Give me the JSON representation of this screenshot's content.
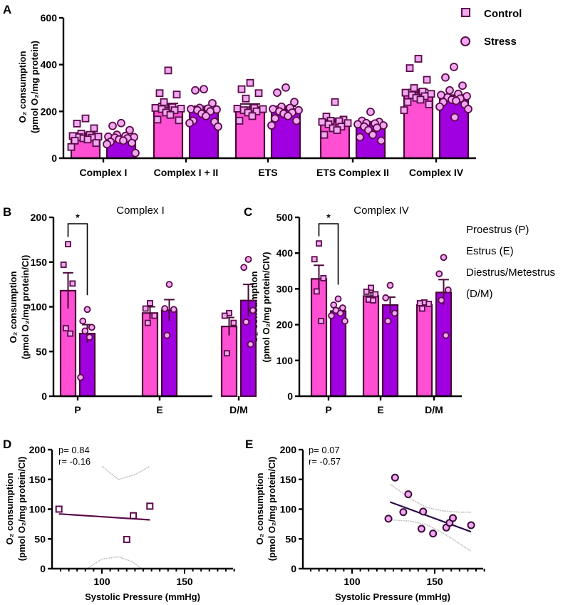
{
  "colors": {
    "control_fill": "#ff4fd2",
    "stress_fill": "#a000e0",
    "bar_stroke": "#4a0a3a",
    "point_fill": "#f2a8f0",
    "point_stroke": "#5a0a4a",
    "fit_line_D": "#5a0a4a",
    "fit_line_E": "#2a0a4a",
    "ci_line": "#b8b8b8"
  },
  "legend": {
    "items": [
      {
        "label": "Control",
        "marker": "square"
      },
      {
        "label": "Stress",
        "marker": "circle"
      }
    ]
  },
  "phase_legend": {
    "lines": [
      "Proestrus (P)",
      "Estrus (E)",
      "Diestrus/Metestrus",
      "(D/M)"
    ]
  },
  "chart_data": [
    {
      "id": "A",
      "panel_letter": "A",
      "type": "bar",
      "title": "",
      "ylabel_line1": "O₂ consumption",
      "ylabel_line2": "(pmol O₂/mg protein)",
      "xlabel": "",
      "ylim": [
        0,
        600
      ],
      "yticks": [
        0,
        200,
        400,
        600
      ],
      "categories": [
        "Complex I",
        "Complex I + II",
        "ETS",
        "ETS Complex II",
        "Complex IV"
      ],
      "series": [
        {
          "name": "Control",
          "values": [
            100,
            218,
            218,
            160,
            280
          ],
          "sem": [
            8,
            16,
            14,
            10,
            14
          ],
          "points": [
            [
              170,
              148,
              128,
              105,
              100,
              95,
              92,
              90,
              88,
              85,
              80,
              75,
              65,
              48
            ],
            [
              375,
              278,
              272,
              240,
              218,
              215,
              212,
              210,
              205,
              195,
              185,
              165,
              162
            ],
            [
              322,
              295,
              278,
              255,
              215,
              212,
              210,
              205,
              200,
              195,
              180,
              160
            ],
            [
              240,
              178,
              165,
              160,
              158,
              155,
              150,
              145,
              135,
              128,
              120,
              100
            ],
            [
              425,
              385,
              335,
              300,
              285,
              280,
              275,
              270,
              265,
              258,
              250,
              240,
              230,
              205
            ]
          ]
        },
        {
          "name": "Stress",
          "values": [
            88,
            210,
            210,
            148,
            258
          ],
          "sem": [
            7,
            12,
            12,
            7,
            12
          ],
          "points": [
            [
              150,
              138,
              120,
              100,
              95,
              92,
              90,
              88,
              85,
              80,
              75,
              70,
              65,
              60,
              22
            ],
            [
              295,
              290,
              235,
              215,
              212,
              210,
              208,
              205,
              200,
              190,
              180,
              160,
              155,
              150,
              135
            ],
            [
              302,
              280,
              240,
              220,
              215,
              210,
              205,
              200,
              195,
              190,
              180,
              170,
              160,
              140
            ],
            [
              198,
              160,
              155,
              150,
              148,
              145,
              140,
              135,
              130,
              120,
              100,
              90,
              75
            ],
            [
              390,
              345,
              310,
              290,
              275,
              270,
              265,
              260,
              255,
              250,
              245,
              240,
              230,
              220,
              210,
              175
            ]
          ]
        }
      ]
    },
    {
      "id": "B",
      "panel_letter": "B",
      "type": "bar",
      "title": "Complex I",
      "ylabel_line1": "O₂ consumption",
      "ylabel_line2": "(pmol O₂/mg protein/CI)",
      "xlabel": "",
      "ylim": [
        0,
        200
      ],
      "yticks": [
        0,
        50,
        100,
        150,
        200
      ],
      "categories": [
        "P",
        "E",
        "D/M"
      ],
      "significance": {
        "group": "P",
        "label": "*"
      },
      "series": [
        {
          "name": "Control",
          "values": [
            118,
            93,
            78
          ],
          "sem": [
            20,
            7,
            10
          ],
          "points": [
            [
              170,
              147,
              126,
              76,
              70
            ],
            [
              104,
              98,
              90,
              82
            ],
            [
              93,
              90,
              82,
              48
            ]
          ]
        },
        {
          "name": "Stress",
          "values": [
            70,
            96,
            107
          ],
          "sem": [
            10,
            12,
            18
          ],
          "points": [
            [
              97,
              84,
              77,
              73,
              66,
              21
            ],
            [
              125,
              98,
              97,
              68
            ],
            [
              153,
              144,
              96,
              83,
              58
            ]
          ]
        }
      ]
    },
    {
      "id": "C",
      "panel_letter": "C",
      "type": "bar",
      "title": "Complex IV",
      "ylabel_line1": "O₂ consumption",
      "ylabel_line2": "(pmol O₂/mg protein/CIV)",
      "xlabel": "",
      "ylim": [
        0,
        500
      ],
      "yticks": [
        0,
        100,
        200,
        300,
        400,
        500
      ],
      "categories": [
        "P",
        "E",
        "D/M"
      ],
      "significance": {
        "group": "P",
        "label": "*"
      },
      "series": [
        {
          "name": "Control",
          "values": [
            328,
            280,
            255
          ],
          "sem": [
            38,
            10,
            5
          ],
          "points": [
            [
              427,
              383,
              330,
              293,
              210
            ],
            [
              303,
              292,
              285,
              270,
              268
            ],
            [
              262,
              260,
              258,
              245
            ]
          ]
        },
        {
          "name": "Stress",
          "values": [
            238,
            255,
            290
          ],
          "sem": [
            8,
            22,
            36
          ],
          "points": [
            [
              272,
              255,
              247,
              240,
              232,
              225,
              210
            ],
            [
              310,
              275,
              232,
              210
            ],
            [
              388,
              342,
              297,
              268,
              170
            ]
          ]
        }
      ]
    },
    {
      "id": "D",
      "panel_letter": "D",
      "type": "scatter",
      "title": "",
      "ylabel_line1": "O₂ consumption",
      "ylabel_line2": "(pmol O₂/mg protein/CI)",
      "xlabel": "Systolic Pressure (mmHg)",
      "xlim": [
        70,
        180
      ],
      "ylim": [
        0,
        200
      ],
      "xticks": [
        100,
        150
      ],
      "yticks": [
        0,
        50,
        100,
        150,
        200
      ],
      "stats": [
        "p= 0.84",
        "r= -0.16"
      ],
      "marker": "square",
      "points": [
        {
          "x": 74,
          "y": 100
        },
        {
          "x": 115,
          "y": 49
        },
        {
          "x": 119,
          "y": 89
        },
        {
          "x": 129,
          "y": 105
        }
      ],
      "fit": {
        "x0": 74,
        "y0": 92,
        "x1": 129,
        "y1": 82
      },
      "ci_upper": [
        [
          100,
          172
        ],
        [
          110,
          150
        ],
        [
          120,
          158
        ],
        [
          129,
          172
        ]
      ],
      "ci_lower": [
        [
          91,
          0
        ],
        [
          100,
          16
        ],
        [
          110,
          20
        ],
        [
          118,
          12
        ],
        [
          124,
          0
        ]
      ]
    },
    {
      "id": "E",
      "panel_letter": "E",
      "type": "scatter",
      "title": "",
      "ylabel_line1": "O₂ consumption",
      "ylabel_line2": "(pmol O₂/mg protein/CI)",
      "xlabel": "Systolic Pressure (mmHg)",
      "xlim": [
        70,
        180
      ],
      "ylim": [
        0,
        200
      ],
      "xticks": [
        100,
        150
      ],
      "yticks": [
        0,
        50,
        100,
        150,
        200
      ],
      "stats": [
        "p= 0.07",
        "r= -0.57"
      ],
      "marker": "circle",
      "points": [
        {
          "x": 122,
          "y": 84
        },
        {
          "x": 126,
          "y": 153
        },
        {
          "x": 131,
          "y": 95
        },
        {
          "x": 134,
          "y": 125
        },
        {
          "x": 142,
          "y": 67
        },
        {
          "x": 143,
          "y": 96
        },
        {
          "x": 149,
          "y": 59
        },
        {
          "x": 157,
          "y": 69
        },
        {
          "x": 159,
          "y": 77
        },
        {
          "x": 161,
          "y": 85
        },
        {
          "x": 172,
          "y": 73
        }
      ],
      "fit": {
        "x0": 123,
        "y0": 112,
        "x1": 172,
        "y1": 62
      },
      "ci_upper": [
        [
          123,
          142
        ],
        [
          135,
          118
        ],
        [
          145,
          103
        ],
        [
          155,
          97
        ],
        [
          165,
          95
        ],
        [
          172,
          95
        ]
      ],
      "ci_lower": [
        [
          123,
          82
        ],
        [
          135,
          80
        ],
        [
          145,
          74
        ],
        [
          155,
          60
        ],
        [
          165,
          42
        ],
        [
          172,
          29
        ]
      ]
    }
  ]
}
